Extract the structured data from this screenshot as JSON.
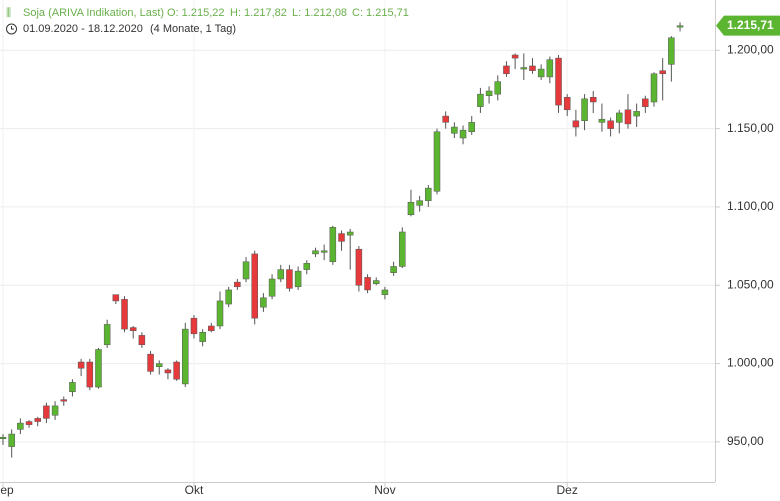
{
  "chart_data": {
    "type": "candlestick",
    "title": "Soja (ARIVA Indikation, Last)",
    "ohlc_labels": [
      "O: 1.215,22",
      "H: 1.217,82",
      "L: 1.212,08",
      "C: 1.215,71"
    ],
    "date_range": "01.09.2020 - 18.12.2020",
    "period": "(4 Monate, 1 Tag)",
    "last_price_label": "1.215,71",
    "up_color": "#5cb531",
    "down_color": "#e5393c",
    "grid": true,
    "categories": [
      "Sep",
      null,
      null,
      null,
      null,
      null,
      null,
      null,
      null,
      null,
      null,
      null,
      null,
      null,
      null,
      null,
      null,
      null,
      null,
      null,
      null,
      null,
      "Okt",
      null,
      null,
      null,
      null,
      null,
      null,
      null,
      null,
      null,
      null,
      null,
      null,
      null,
      null,
      null,
      null,
      null,
      null,
      null,
      null,
      null,
      "Nov",
      null,
      null,
      null,
      null,
      null,
      null,
      null,
      null,
      null,
      null,
      null,
      null,
      null,
      null,
      null,
      null,
      null,
      null,
      null,
      null,
      "Dez",
      null,
      null,
      null,
      null,
      null,
      null,
      null,
      null,
      null,
      null,
      null,
      null,
      null
    ],
    "open": [
      952,
      947,
      958,
      963,
      965,
      973,
      967,
      977,
      982,
      1001,
      1001,
      985,
      1012,
      1044,
      1041,
      1023,
      1018,
      1006,
      998,
      996,
      1001,
      987,
      1029,
      1014,
      1024,
      1024,
      1038,
      1052,
      1054,
      1070,
      1036,
      1043,
      1054,
      1060,
      1049,
      1060,
      1070,
      1071,
      1065,
      1083,
      1082,
      1073,
      1055,
      1051,
      1044,
      1058,
      1062,
      1095,
      1101,
      1104,
      1110,
      1158,
      1147,
      1144,
      1148,
      1164,
      1171,
      1172,
      1190,
      1197,
      1188,
      1190,
      1183,
      1183,
      1195,
      1170,
      1155,
      1155,
      1170,
      1154,
      1155,
      1154,
      1162,
      1158,
      1169,
      1167,
      1187,
      1191,
      1215.22
    ],
    "high": [
      955,
      958,
      965,
      964,
      966,
      975,
      976,
      979,
      990,
      1003,
      1003,
      1010,
      1028,
      1044,
      1043,
      1024,
      1020,
      1008,
      1002,
      997,
      1002,
      1026,
      1031,
      1022,
      1026,
      1046,
      1049,
      1054,
      1068,
      1072,
      1045,
      1057,
      1063,
      1063,
      1062,
      1066,
      1074,
      1076,
      1088,
      1085,
      1086,
      1075,
      1057,
      1055,
      1049,
      1065,
      1087,
      1111,
      1107,
      1114,
      1150,
      1161,
      1154,
      1152,
      1158,
      1176,
      1177,
      1184,
      1193,
      1198,
      1198,
      1195,
      1191,
      1196,
      1197,
      1172,
      1162,
      1172,
      1174,
      1166,
      1157,
      1162,
      1172,
      1166,
      1171,
      1186,
      1195,
      1209,
      1217.82
    ],
    "low": [
      948,
      940,
      955,
      959,
      960,
      962,
      964,
      973,
      979,
      992,
      983,
      984,
      1010,
      1038,
      1020,
      1016,
      1010,
      993,
      993,
      990,
      989,
      985,
      1016,
      1011,
      1020,
      1022,
      1036,
      1047,
      1052,
      1025,
      1033,
      1041,
      1052,
      1046,
      1047,
      1057,
      1068,
      1066,
      1063,
      1072,
      1060,
      1046,
      1045,
      1050,
      1041,
      1056,
      1061,
      1094,
      1097,
      1100,
      1108,
      1150,
      1144,
      1140,
      1146,
      1160,
      1166,
      1168,
      1183,
      1188,
      1181,
      1185,
      1181,
      1179,
      1160,
      1158,
      1145,
      1149,
      1160,
      1148,
      1145,
      1147,
      1150,
      1151,
      1160,
      1164,
      1168,
      1180,
      1212.08
    ],
    "close": [
      953,
      955,
      962,
      961,
      963,
      965,
      973,
      976,
      988,
      997,
      985,
      1009,
      1025,
      1040,
      1022,
      1021,
      1012,
      995,
      1000,
      994,
      990,
      1022,
      1019,
      1020,
      1021,
      1040,
      1047,
      1049,
      1065,
      1029,
      1042,
      1054,
      1060,
      1048,
      1059,
      1064,
      1072,
      1072,
      1087,
      1078,
      1084,
      1050,
      1047,
      1053,
      1047,
      1062,
      1084,
      1103,
      1104,
      1112,
      1148,
      1154,
      1151,
      1149,
      1154,
      1172,
      1174,
      1180,
      1185,
      1195,
      1189,
      1187,
      1188,
      1194,
      1165,
      1162,
      1151,
      1169,
      1167,
      1156,
      1150,
      1160,
      1153,
      1161,
      1164,
      1185,
      1185,
      1208,
      1215.71
    ],
    "ylim": [
      924.4,
      1232.1
    ],
    "yticks": [
      {
        "value": 950,
        "label": "950,00"
      },
      {
        "value": 1000,
        "label": "1.000,00"
      },
      {
        "value": 1050,
        "label": "1.050,00"
      },
      {
        "value": 1100,
        "label": "1.100,00"
      },
      {
        "value": 1150,
        "label": "1.150,00"
      },
      {
        "value": 1200,
        "label": "1.200,00"
      }
    ]
  }
}
